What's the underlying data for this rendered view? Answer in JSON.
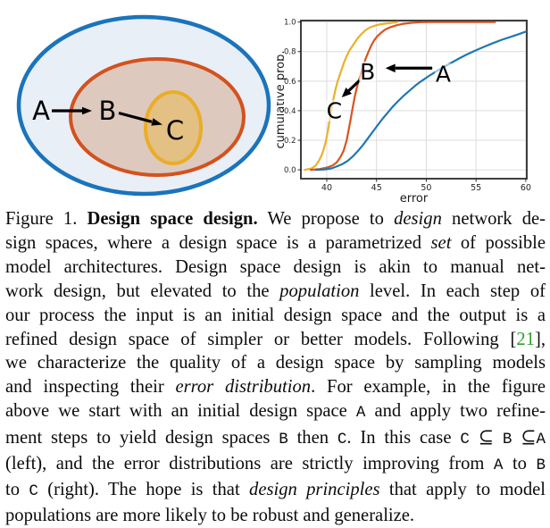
{
  "figure": {
    "venn": {
      "labels": {
        "a": "A",
        "b": "B",
        "c": "C"
      },
      "colors": {
        "outer_stroke": "#1b74bb",
        "outer_fill": "#e8eff7",
        "middle_stroke": "#d4511e",
        "middle_fill": "#ddc9be",
        "inner_stroke": "#e9ad27",
        "inner_fill": "#e3c084",
        "arrow": "#000000"
      }
    },
    "chart_data": {
      "type": "line",
      "title": "",
      "xlabel": "error",
      "ylabel": "cumulative prob.",
      "xlim": [
        37.4,
        60.1
      ],
      "ylim": [
        -0.06,
        1.01
      ],
      "xticks": [
        "40",
        "45",
        "50",
        "55",
        "60"
      ],
      "yticks": [
        "0.0",
        "0.2",
        "0.4",
        "0.6",
        "0.8",
        "1.0"
      ],
      "grid": true,
      "grid_color": "#dcdcdc",
      "spine_color": "#2a2a2a",
      "series": [
        {
          "name": "C",
          "color": "#eab02c",
          "points": [
            [
              37.8,
              0
            ],
            [
              38.5,
              0.01
            ],
            [
              38.9,
              0.03
            ],
            [
              39.2,
              0.06
            ],
            [
              39.5,
              0.1
            ],
            [
              39.7,
              0.14
            ],
            [
              39.9,
              0.19
            ],
            [
              40.1,
              0.26
            ],
            [
              40.3,
              0.34
            ],
            [
              40.5,
              0.42
            ],
            [
              40.7,
              0.49
            ],
            [
              40.9,
              0.55
            ],
            [
              41.1,
              0.6
            ],
            [
              41.4,
              0.66
            ],
            [
              41.7,
              0.72
            ],
            [
              42.0,
              0.77
            ],
            [
              42.3,
              0.81
            ],
            [
              42.7,
              0.85
            ],
            [
              43.1,
              0.89
            ],
            [
              43.5,
              0.92
            ],
            [
              43.9,
              0.945
            ],
            [
              44.3,
              0.962
            ],
            [
              44.8,
              0.975
            ],
            [
              45.4,
              0.985
            ],
            [
              46.2,
              0.992
            ],
            [
              47.1,
              1.0
            ]
          ]
        },
        {
          "name": "B",
          "color": "#d9541e",
          "points": [
            [
              38.4,
              0
            ],
            [
              39.3,
              0.005
            ],
            [
              40.0,
              0.015
            ],
            [
              40.6,
              0.03
            ],
            [
              41.0,
              0.05
            ],
            [
              41.4,
              0.09
            ],
            [
              41.7,
              0.13
            ],
            [
              42.0,
              0.2
            ],
            [
              42.2,
              0.27
            ],
            [
              42.4,
              0.34
            ],
            [
              42.6,
              0.42
            ],
            [
              42.8,
              0.49
            ],
            [
              43.0,
              0.55
            ],
            [
              43.2,
              0.6
            ],
            [
              43.4,
              0.645
            ],
            [
              43.6,
              0.69
            ],
            [
              43.9,
              0.75
            ],
            [
              44.2,
              0.8
            ],
            [
              44.5,
              0.845
            ],
            [
              44.8,
              0.88
            ],
            [
              45.1,
              0.905
            ],
            [
              45.5,
              0.93
            ],
            [
              45.9,
              0.95
            ],
            [
              46.4,
              0.965
            ],
            [
              47.0,
              0.978
            ],
            [
              47.7,
              0.988
            ],
            [
              48.5,
              0.995
            ],
            [
              49.5,
              0.999
            ],
            [
              50.2,
              1.0
            ],
            [
              56.9,
              1.0
            ]
          ]
        },
        {
          "name": "A",
          "color": "#1f77b4",
          "points": [
            [
              38.9,
              0
            ],
            [
              39.8,
              0.003
            ],
            [
              40.5,
              0.01
            ],
            [
              41.1,
              0.025
            ],
            [
              41.6,
              0.04
            ],
            [
              42.1,
              0.06
            ],
            [
              42.6,
              0.09
            ],
            [
              43.1,
              0.125
            ],
            [
              43.6,
              0.165
            ],
            [
              44.1,
              0.21
            ],
            [
              44.6,
              0.255
            ],
            [
              45.1,
              0.3
            ],
            [
              45.6,
              0.345
            ],
            [
              46.1,
              0.385
            ],
            [
              46.6,
              0.425
            ],
            [
              47.1,
              0.46
            ],
            [
              47.7,
              0.5
            ],
            [
              48.3,
              0.535
            ],
            [
              48.9,
              0.57
            ],
            [
              49.5,
              0.6
            ],
            [
              50.2,
              0.632
            ],
            [
              50.9,
              0.662
            ],
            [
              51.6,
              0.69
            ],
            [
              52.4,
              0.72
            ],
            [
              53.2,
              0.75
            ],
            [
              54.0,
              0.778
            ],
            [
              54.9,
              0.806
            ],
            [
              55.8,
              0.832
            ],
            [
              56.7,
              0.857
            ],
            [
              57.6,
              0.88
            ],
            [
              58.5,
              0.9
            ],
            [
              59.3,
              0.918
            ],
            [
              60.0,
              0.935
            ]
          ]
        }
      ],
      "annotations": [
        {
          "label": "A",
          "x": 51.7,
          "y": 0.648,
          "arrow": {
            "x1": 50.6,
            "y1": 0.688,
            "x2": 45.9,
            "y2": 0.688
          }
        },
        {
          "label": "B",
          "x": 44.1,
          "y": 0.662,
          "arrow": {
            "x1": 43.3,
            "y1": 0.605,
            "x2": 41.5,
            "y2": 0.49
          }
        },
        {
          "label": "C",
          "x": 40.75,
          "y": 0.4
        }
      ],
      "annotation_color": "#000000",
      "legend_position": "none"
    }
  },
  "caption": {
    "lines": [
      [
        {
          "t": "Figure 1. "
        },
        {
          "t": "Design space design.",
          "s": "b"
        },
        {
          "t": " We propose to "
        },
        {
          "t": "design",
          "s": "i"
        },
        {
          "t": " network de-"
        }
      ],
      [
        {
          "t": "sign spaces, where a design space is a parametrized "
        },
        {
          "t": "set",
          "s": "i"
        },
        {
          "t": " of possible"
        }
      ],
      [
        {
          "t": "model architectures. Design space design is akin to manual net-"
        }
      ],
      [
        {
          "t": "work design, but elevated to the "
        },
        {
          "t": "population",
          "s": "i"
        },
        {
          "t": " level. In each step of"
        }
      ],
      [
        {
          "t": "our process the input is an initial design space and the output is a"
        }
      ],
      [
        {
          "t": "refined design space of simpler or better models. Following ["
        },
        {
          "t": "21",
          "s": "g"
        },
        {
          "t": "],"
        }
      ],
      [
        {
          "t": "we characterize the quality of a design space by sampling models"
        }
      ],
      [
        {
          "t": "and inspecting their "
        },
        {
          "t": "error distribution",
          "s": "i"
        },
        {
          "t": ". For example, in the figure"
        }
      ],
      [
        {
          "t": "above we start with an initial design space "
        },
        {
          "t": "A",
          "s": "tt"
        },
        {
          "t": " and apply two refine-"
        }
      ],
      [
        {
          "t": "ment steps to yield design spaces "
        },
        {
          "t": "B",
          "s": "tt"
        },
        {
          "t": " then "
        },
        {
          "t": "C",
          "s": "tt"
        },
        {
          "t": ". In this case "
        },
        {
          "t": "C",
          "s": "tt"
        },
        {
          "t": " "
        },
        {
          "t": "⊆",
          "s": "m"
        },
        {
          "t": " "
        },
        {
          "t": "B",
          "s": "tt"
        },
        {
          "t": " "
        },
        {
          "t": "⊆",
          "s": "m"
        },
        {
          "t": "A",
          "s": "tt"
        }
      ],
      [
        {
          "t": "(left), and the error distributions are strictly improving from "
        },
        {
          "t": "A",
          "s": "tt"
        },
        {
          "t": " to "
        },
        {
          "t": "B",
          "s": "tt"
        }
      ],
      [
        {
          "t": "to "
        },
        {
          "t": "C",
          "s": "tt"
        },
        {
          "t": " (right). The hope is that "
        },
        {
          "t": "design principles",
          "s": "i"
        },
        {
          "t": " that apply to model"
        }
      ],
      [
        {
          "t": "populations are more likely to be robust and generalize."
        }
      ]
    ]
  }
}
